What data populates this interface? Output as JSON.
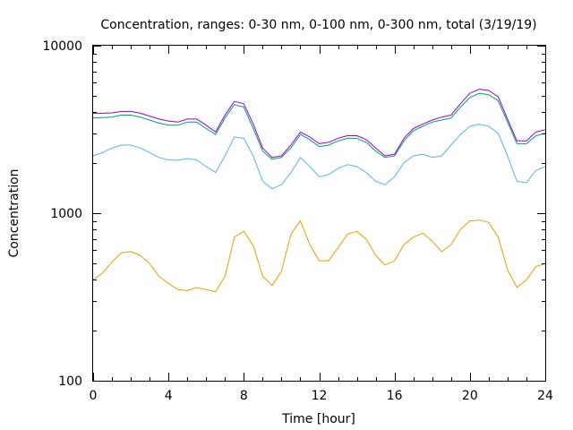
{
  "chart_data": {
    "type": "line",
    "title": "Concentration, ranges: 0-30 nm, 0-100 nm, 0-300 nm, total (3/19/19)",
    "xlabel": "Time [hour]",
    "ylabel": "Concentration",
    "xlim": [
      0,
      24
    ],
    "ylim": [
      100,
      10000
    ],
    "yscale": "log",
    "grid": false,
    "x_ticks": [
      "0",
      "4",
      "8",
      "12",
      "16",
      "20",
      "24"
    ],
    "y_ticks": [
      "100",
      "1000",
      "10000"
    ],
    "x": [
      0,
      0.5,
      1,
      1.5,
      2,
      2.5,
      3,
      3.5,
      4,
      4.5,
      5,
      5.5,
      6,
      6.5,
      7,
      7.5,
      8,
      8.5,
      9,
      9.5,
      10,
      10.5,
      11,
      11.5,
      12,
      12.5,
      13,
      13.5,
      14,
      14.5,
      15,
      15.5,
      16,
      16.5,
      17,
      17.5,
      18,
      18.5,
      19,
      19.5,
      20,
      20.5,
      21,
      21.5,
      22,
      22.5,
      23,
      23.5,
      24
    ],
    "series": [
      {
        "color": "#e69f00",
        "values": [
          400,
          440,
          510,
          580,
          590,
          560,
          500,
          420,
          380,
          350,
          345,
          360,
          350,
          340,
          420,
          720,
          780,
          640,
          420,
          370,
          450,
          750,
          900,
          650,
          520,
          520,
          620,
          750,
          780,
          700,
          560,
          490,
          520,
          650,
          720,
          760,
          680,
          590,
          650,
          800,
          900,
          910,
          880,
          720,
          460,
          360,
          400,
          480,
          500
        ]
      },
      {
        "color": "#56b4e9",
        "values": [
          2200,
          2300,
          2450,
          2550,
          2550,
          2450,
          2300,
          2150,
          2080,
          2070,
          2120,
          2080,
          1900,
          1750,
          2200,
          2850,
          2800,
          2200,
          1550,
          1400,
          1480,
          1750,
          2150,
          1900,
          1650,
          1700,
          1850,
          1950,
          1900,
          1750,
          1550,
          1480,
          1650,
          2000,
          2200,
          2250,
          2150,
          2200,
          2550,
          2950,
          3300,
          3400,
          3300,
          3000,
          2200,
          1550,
          1520,
          1800,
          1900
        ]
      },
      {
        "color": "#009e73",
        "values": [
          3700,
          3720,
          3750,
          3850,
          3850,
          3750,
          3600,
          3450,
          3350,
          3350,
          3500,
          3500,
          3200,
          2950,
          3700,
          4450,
          4300,
          3200,
          2350,
          2100,
          2150,
          2450,
          2950,
          2750,
          2500,
          2550,
          2700,
          2800,
          2800,
          2650,
          2350,
          2150,
          2200,
          2700,
          3100,
          3300,
          3500,
          3600,
          3700,
          4300,
          4900,
          5200,
          5100,
          4700,
          3500,
          2600,
          2600,
          2900,
          3000
        ]
      },
      {
        "color": "#9400d3",
        "values": [
          3950,
          3950,
          3970,
          4050,
          4050,
          3950,
          3800,
          3650,
          3550,
          3500,
          3650,
          3650,
          3350,
          3050,
          3850,
          4650,
          4500,
          3400,
          2450,
          2150,
          2200,
          2550,
          3050,
          2850,
          2600,
          2650,
          2800,
          2900,
          2900,
          2750,
          2450,
          2200,
          2250,
          2800,
          3200,
          3400,
          3600,
          3750,
          3850,
          4500,
          5200,
          5500,
          5400,
          4950,
          3650,
          2700,
          2700,
          3050,
          3150
        ]
      }
    ]
  }
}
